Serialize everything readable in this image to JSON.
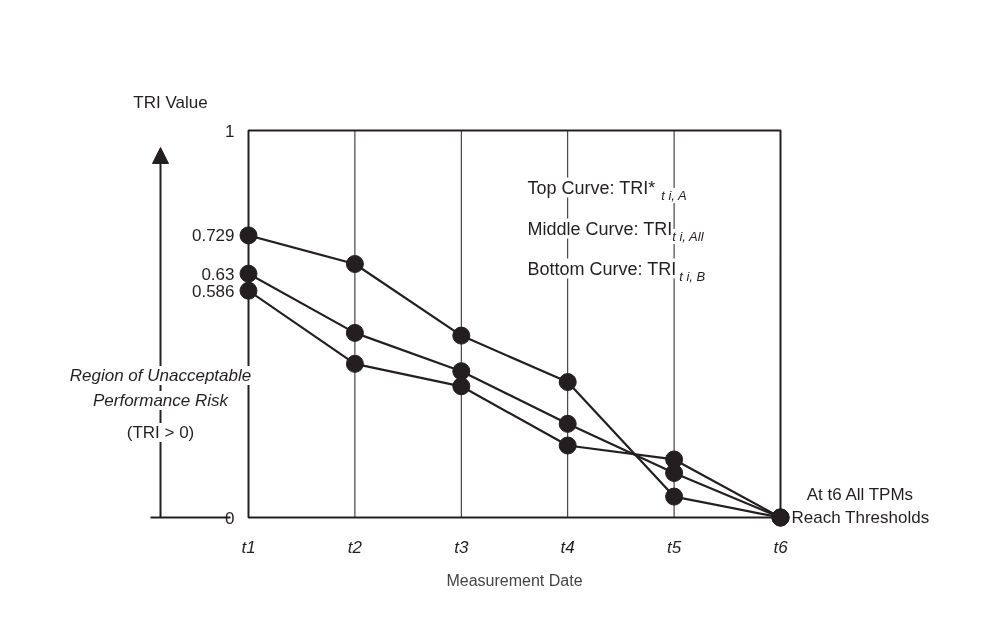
{
  "chart_data": {
    "type": "line",
    "xlabel": "Measurement Date",
    "ylabel": "TRI Value",
    "categories": [
      "t1",
      "t2",
      "t3",
      "t4",
      "t5",
      "t6"
    ],
    "ylim": [
      0,
      1
    ],
    "yticks": [
      0,
      0.586,
      0.63,
      0.729,
      1
    ],
    "series": [
      {
        "color": "#231f20",
        "values": [
          0.729,
          0.655,
          0.47,
          0.35,
          0.054,
          0
        ]
      },
      {
        "color": "#231f20",
        "values": [
          0.63,
          0.477,
          0.378,
          0.242,
          0.115,
          0
        ]
      },
      {
        "color": "#231f20",
        "values": [
          0.586,
          0.397,
          0.339,
          0.186,
          0.15,
          0
        ]
      }
    ],
    "marker": "circle",
    "grid": "x",
    "annotations": [
      "Top Curve: TRI*$_{t i, A}$",
      "Middle Curve: TRI$_{t i, All}$",
      "Bottom Curve: TRI$_{t i, B}$",
      "Region of Unacceptable",
      "Performance Risk",
      "(TRI > 0)",
      "At t6 All TPMs",
      "Reach Thresholds"
    ]
  }
}
